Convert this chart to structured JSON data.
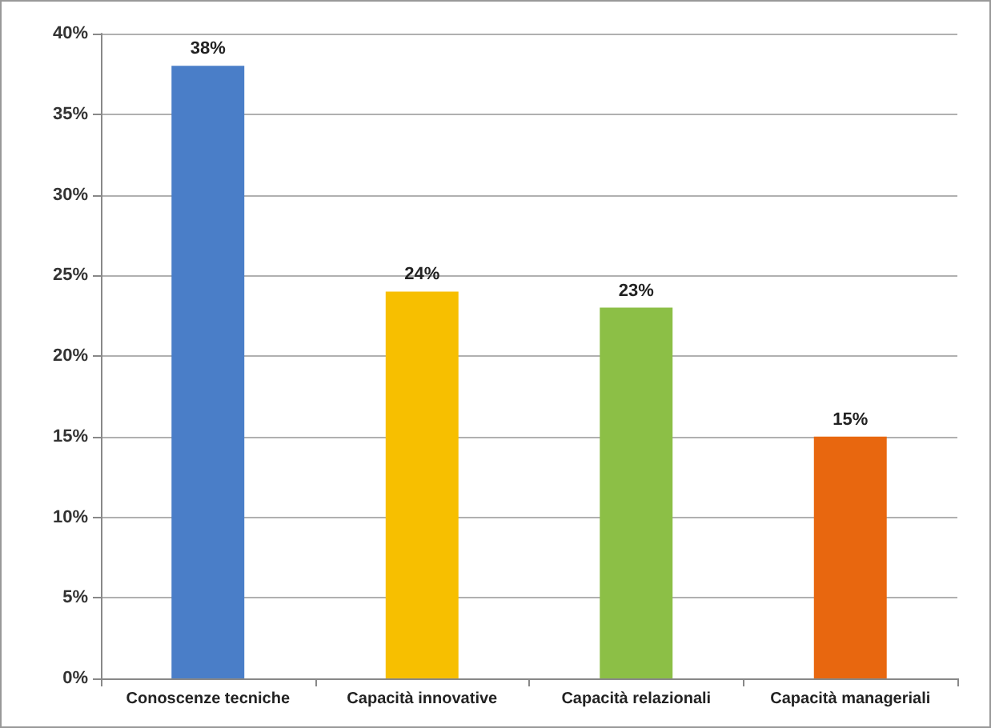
{
  "chart_data": {
    "type": "bar",
    "categories": [
      "Conoscenze tecniche",
      "Capacità innovative",
      "Capacità relazionali",
      "Capacità manageriali"
    ],
    "values": [
      38,
      24,
      23,
      15
    ],
    "colors": [
      "#4a7ec8",
      "#f7bf00",
      "#8cbf46",
      "#e8670f"
    ],
    "value_labels": [
      "38%",
      "24%",
      "23%",
      "15%"
    ],
    "ylim": [
      0,
      40
    ],
    "yticks": [
      {
        "value": 0,
        "label": "0%"
      },
      {
        "value": 5,
        "label": "5%"
      },
      {
        "value": 10,
        "label": "10%"
      },
      {
        "value": 15,
        "label": "15%"
      },
      {
        "value": 20,
        "label": "20%"
      },
      {
        "value": 25,
        "label": "25%"
      },
      {
        "value": 30,
        "label": "30%"
      },
      {
        "value": 35,
        "label": "35%"
      },
      {
        "value": 40,
        "label": "40%"
      }
    ],
    "grid": "y"
  }
}
